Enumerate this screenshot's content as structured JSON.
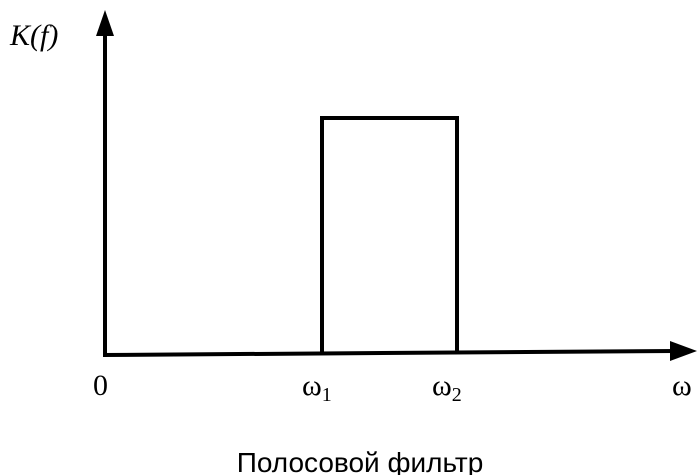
{
  "axes": {
    "y_label": "K(f)",
    "x_label": "ω",
    "origin": "0"
  },
  "markers": [
    {
      "symbol": "ω",
      "subscript": "1"
    },
    {
      "symbol": "ω",
      "subscript": "2"
    }
  ],
  "caption": "Полосовой фильтр"
}
